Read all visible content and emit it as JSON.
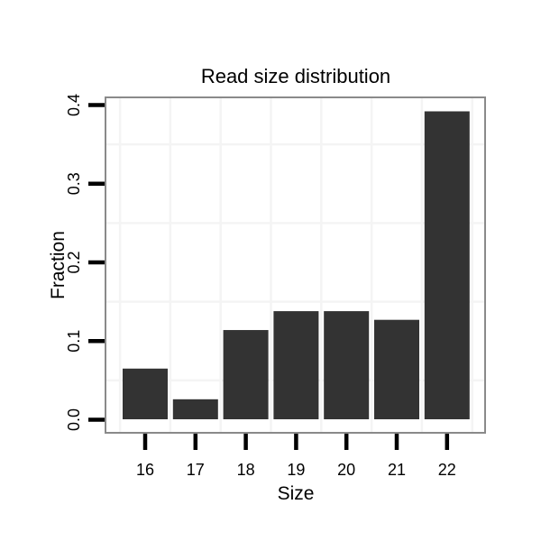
{
  "chart_data": {
    "type": "bar",
    "title": "Read size distribution",
    "xlabel": "Size",
    "ylabel": "Fraction",
    "categories": [
      "16",
      "17",
      "18",
      "19",
      "20",
      "21",
      "22"
    ],
    "values": [
      0.065,
      0.026,
      0.114,
      0.138,
      0.138,
      0.127,
      0.392
    ],
    "ytick_labels": [
      "0.0",
      "0.1",
      "0.2",
      "0.3",
      "0.4"
    ],
    "ytick_values": [
      0.0,
      0.1,
      0.2,
      0.3,
      0.4
    ],
    "ylim": [
      -0.017,
      0.41
    ],
    "grid": {
      "shown": true,
      "horizontal_lines_at": [
        0.05,
        0.15,
        0.25,
        0.35
      ],
      "vertical_lines": "between categories and at panel-edge half-steps"
    },
    "legend": "none",
    "colors": {
      "bar": "#333333",
      "panel_border": "#8a8a8a",
      "grid_line": "#f4f4f4",
      "tick": "#000000",
      "text": "#000000",
      "background": "#ffffff"
    }
  }
}
